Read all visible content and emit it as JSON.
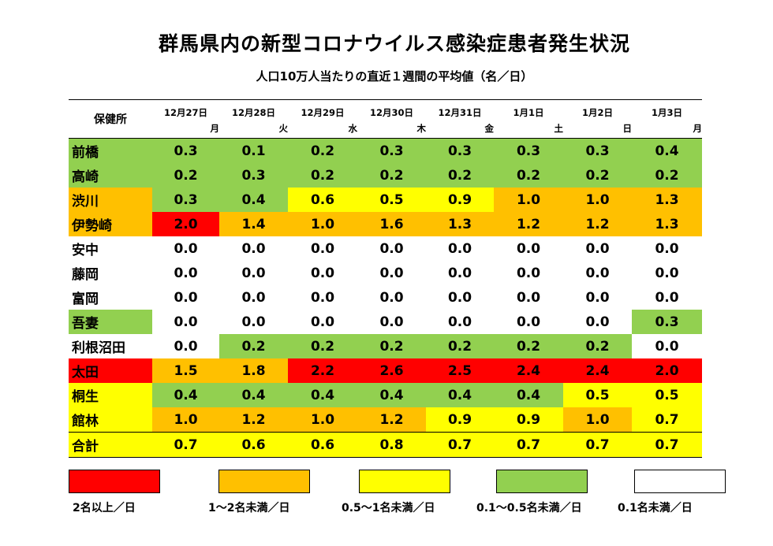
{
  "title": "群馬県内の新型コロナウイルス感染症患者発生状況",
  "subtitle": "人口10万人当たりの直近１週間の平均値（名／日）",
  "colors": {
    "red": "#ff0000",
    "orange": "#ffc000",
    "yellow": "#ffff00",
    "green": "#92d050",
    "white": "#ffffff"
  },
  "table": {
    "header_label": "保健所",
    "dates": [
      "12月27日",
      "12月28日",
      "12月29日",
      "12月30日",
      "12月31日",
      "1月1日",
      "1月2日",
      "1月3日"
    ],
    "weekdays": [
      "月",
      "火",
      "水",
      "木",
      "金",
      "土",
      "日",
      "月"
    ],
    "rows": [
      {
        "name": "前橋",
        "name_color": "green",
        "values": [
          "0.3",
          "0.1",
          "0.2",
          "0.3",
          "0.3",
          "0.3",
          "0.3",
          "0.4"
        ],
        "colors": [
          "green",
          "green",
          "green",
          "green",
          "green",
          "green",
          "green",
          "green"
        ]
      },
      {
        "name": "高崎",
        "name_color": "green",
        "values": [
          "0.2",
          "0.3",
          "0.2",
          "0.2",
          "0.2",
          "0.2",
          "0.2",
          "0.2"
        ],
        "colors": [
          "green",
          "green",
          "green",
          "green",
          "green",
          "green",
          "green",
          "green"
        ]
      },
      {
        "name": "渋川",
        "name_color": "orange",
        "values": [
          "0.3",
          "0.4",
          "0.6",
          "0.5",
          "0.9",
          "1.0",
          "1.0",
          "1.3"
        ],
        "colors": [
          "green",
          "green",
          "yellow",
          "yellow",
          "yellow",
          "orange",
          "orange",
          "orange"
        ]
      },
      {
        "name": "伊勢崎",
        "name_color": "orange",
        "values": [
          "2.0",
          "1.4",
          "1.0",
          "1.6",
          "1.3",
          "1.2",
          "1.2",
          "1.3"
        ],
        "colors": [
          "red",
          "orange",
          "orange",
          "orange",
          "orange",
          "orange",
          "orange",
          "orange"
        ]
      },
      {
        "name": "安中",
        "name_color": "white",
        "values": [
          "0.0",
          "0.0",
          "0.0",
          "0.0",
          "0.0",
          "0.0",
          "0.0",
          "0.0"
        ],
        "colors": [
          "white",
          "white",
          "white",
          "white",
          "white",
          "white",
          "white",
          "white"
        ]
      },
      {
        "name": "藤岡",
        "name_color": "white",
        "values": [
          "0.0",
          "0.0",
          "0.0",
          "0.0",
          "0.0",
          "0.0",
          "0.0",
          "0.0"
        ],
        "colors": [
          "white",
          "white",
          "white",
          "white",
          "white",
          "white",
          "white",
          "white"
        ]
      },
      {
        "name": "富岡",
        "name_color": "white",
        "values": [
          "0.0",
          "0.0",
          "0.0",
          "0.0",
          "0.0",
          "0.0",
          "0.0",
          "0.0"
        ],
        "colors": [
          "white",
          "white",
          "white",
          "white",
          "white",
          "white",
          "white",
          "white"
        ]
      },
      {
        "name": "吾妻",
        "name_color": "green",
        "values": [
          "0.0",
          "0.0",
          "0.0",
          "0.0",
          "0.0",
          "0.0",
          "0.0",
          "0.3"
        ],
        "colors": [
          "white",
          "white",
          "white",
          "white",
          "white",
          "white",
          "white",
          "green"
        ]
      },
      {
        "name": "利根沼田",
        "name_color": "white",
        "values": [
          "0.0",
          "0.2",
          "0.2",
          "0.2",
          "0.2",
          "0.2",
          "0.2",
          "0.0"
        ],
        "colors": [
          "white",
          "green",
          "green",
          "green",
          "green",
          "green",
          "green",
          "white"
        ]
      },
      {
        "name": "太田",
        "name_color": "red",
        "values": [
          "1.5",
          "1.8",
          "2.2",
          "2.6",
          "2.5",
          "2.4",
          "2.4",
          "2.0"
        ],
        "colors": [
          "orange",
          "orange",
          "red",
          "red",
          "red",
          "red",
          "red",
          "red"
        ]
      },
      {
        "name": "桐生",
        "name_color": "yellow",
        "values": [
          "0.4",
          "0.4",
          "0.4",
          "0.4",
          "0.4",
          "0.4",
          "0.5",
          "0.5"
        ],
        "colors": [
          "green",
          "green",
          "green",
          "green",
          "green",
          "green",
          "yellow",
          "yellow"
        ]
      },
      {
        "name": "館林",
        "name_color": "yellow",
        "values": [
          "1.0",
          "1.2",
          "1.0",
          "1.2",
          "0.9",
          "0.9",
          "1.0",
          "0.7"
        ],
        "colors": [
          "orange",
          "orange",
          "orange",
          "orange",
          "yellow",
          "yellow",
          "orange",
          "yellow"
        ]
      }
    ],
    "total": {
      "name": "合計",
      "name_color": "yellow",
      "values": [
        "0.7",
        "0.6",
        "0.6",
        "0.8",
        "0.7",
        "0.7",
        "0.7",
        "0.7"
      ],
      "colors": [
        "yellow",
        "yellow",
        "yellow",
        "yellow",
        "yellow",
        "yellow",
        "yellow",
        "yellow"
      ]
    }
  },
  "legend": [
    {
      "color": "red",
      "label": "2名以上／日"
    },
    {
      "color": "orange",
      "label": "1～2名未満／日"
    },
    {
      "color": "yellow",
      "label": "0.5～1名未満／日"
    },
    {
      "color": "green",
      "label": "0.1～0.5名未満／日"
    },
    {
      "color": "white",
      "label": "0.1名未満／日"
    }
  ]
}
